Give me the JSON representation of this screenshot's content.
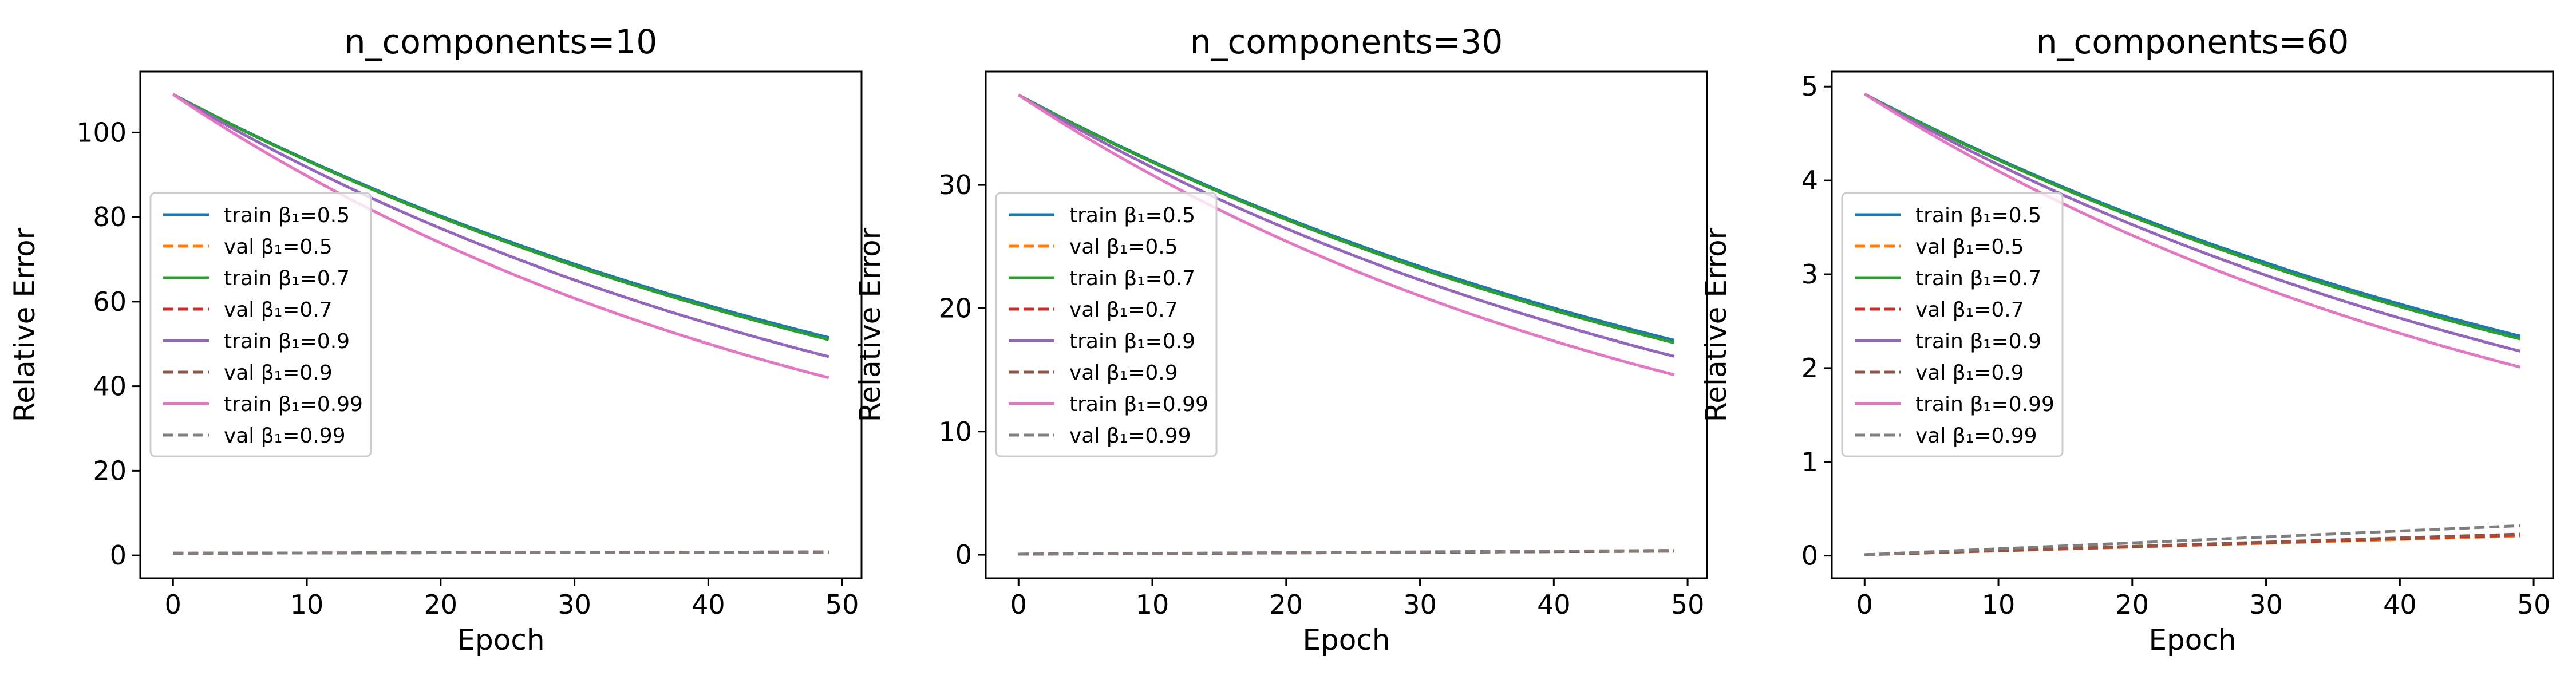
{
  "chart_data": [
    {
      "type": "line",
      "title": "n_components=10",
      "xlabel": "Epoch",
      "ylabel": "Relative Error",
      "xlim": [
        -2.45,
        51.45
      ],
      "ylim": [
        -5.4,
        114.4
      ],
      "xticks": [
        0,
        10,
        20,
        30,
        40,
        50
      ],
      "yticks": [
        0,
        20,
        40,
        60,
        80,
        100
      ],
      "grid": false,
      "legend_position": "center-left",
      "curves": {
        "train_start": 109.0,
        "train_end": {
          "0.5": 51.5,
          "0.7": 51.0,
          "0.9": 47.0,
          "0.99": 42.0
        },
        "val_start": 0.5,
        "val_end": {
          "0.5": 0.8,
          "0.7": 0.8,
          "0.9": 0.8,
          "0.99": 0.8
        }
      }
    },
    {
      "type": "line",
      "title": "n_components=30",
      "xlabel": "Epoch",
      "ylabel": "Relative Error",
      "xlim": [
        -2.45,
        51.45
      ],
      "ylim": [
        -1.9,
        39.2
      ],
      "xticks": [
        0,
        10,
        20,
        30,
        40,
        50
      ],
      "yticks": [
        0,
        10,
        20,
        30
      ],
      "grid": false,
      "legend_position": "center-left",
      "curves": {
        "train_start": 37.3,
        "train_end": {
          "0.5": 17.4,
          "0.7": 17.2,
          "0.9": 16.1,
          "0.99": 14.6
        },
        "val_start": 0.05,
        "val_end": {
          "0.5": 0.3,
          "0.7": 0.3,
          "0.9": 0.3,
          "0.99": 0.35
        }
      }
    },
    {
      "type": "line",
      "title": "n_components=60",
      "xlabel": "Epoch",
      "ylabel": "Relative Error",
      "xlim": [
        -2.45,
        51.45
      ],
      "ylim": [
        -0.24,
        5.16
      ],
      "xticks": [
        0,
        10,
        20,
        30,
        40,
        50
      ],
      "yticks": [
        0,
        1,
        2,
        3,
        4,
        5
      ],
      "grid": false,
      "legend_position": "center-left",
      "curves": {
        "train_start": 4.92,
        "train_end": {
          "0.5": 2.34,
          "0.7": 2.31,
          "0.9": 2.18,
          "0.99": 2.01
        },
        "val_start": 0.01,
        "val_end": {
          "0.5": 0.21,
          "0.7": 0.22,
          "0.9": 0.23,
          "0.99": 0.32
        }
      }
    }
  ],
  "epochs": {
    "start": 0,
    "end": 49
  },
  "legend": [
    {
      "label": "train β₁=0.5",
      "beta": "0.5",
      "kind": "train",
      "color": "#1f77b4",
      "dashed": false
    },
    {
      "label": "val β₁=0.5",
      "beta": "0.5",
      "kind": "val",
      "color": "#ff7f0e",
      "dashed": true
    },
    {
      "label": "train β₁=0.7",
      "beta": "0.7",
      "kind": "train",
      "color": "#2ca02c",
      "dashed": false
    },
    {
      "label": "val β₁=0.7",
      "beta": "0.7",
      "kind": "val",
      "color": "#d62728",
      "dashed": true
    },
    {
      "label": "train β₁=0.9",
      "beta": "0.9",
      "kind": "train",
      "color": "#9467bd",
      "dashed": false
    },
    {
      "label": "val β₁=0.9",
      "beta": "0.9",
      "kind": "val",
      "color": "#8c564b",
      "dashed": true
    },
    {
      "label": "train β₁=0.99",
      "beta": "0.99",
      "kind": "train",
      "color": "#e377c2",
      "dashed": false
    },
    {
      "label": "val β₁=0.99",
      "beta": "0.99",
      "kind": "val",
      "color": "#7f7f7f",
      "dashed": true
    }
  ]
}
